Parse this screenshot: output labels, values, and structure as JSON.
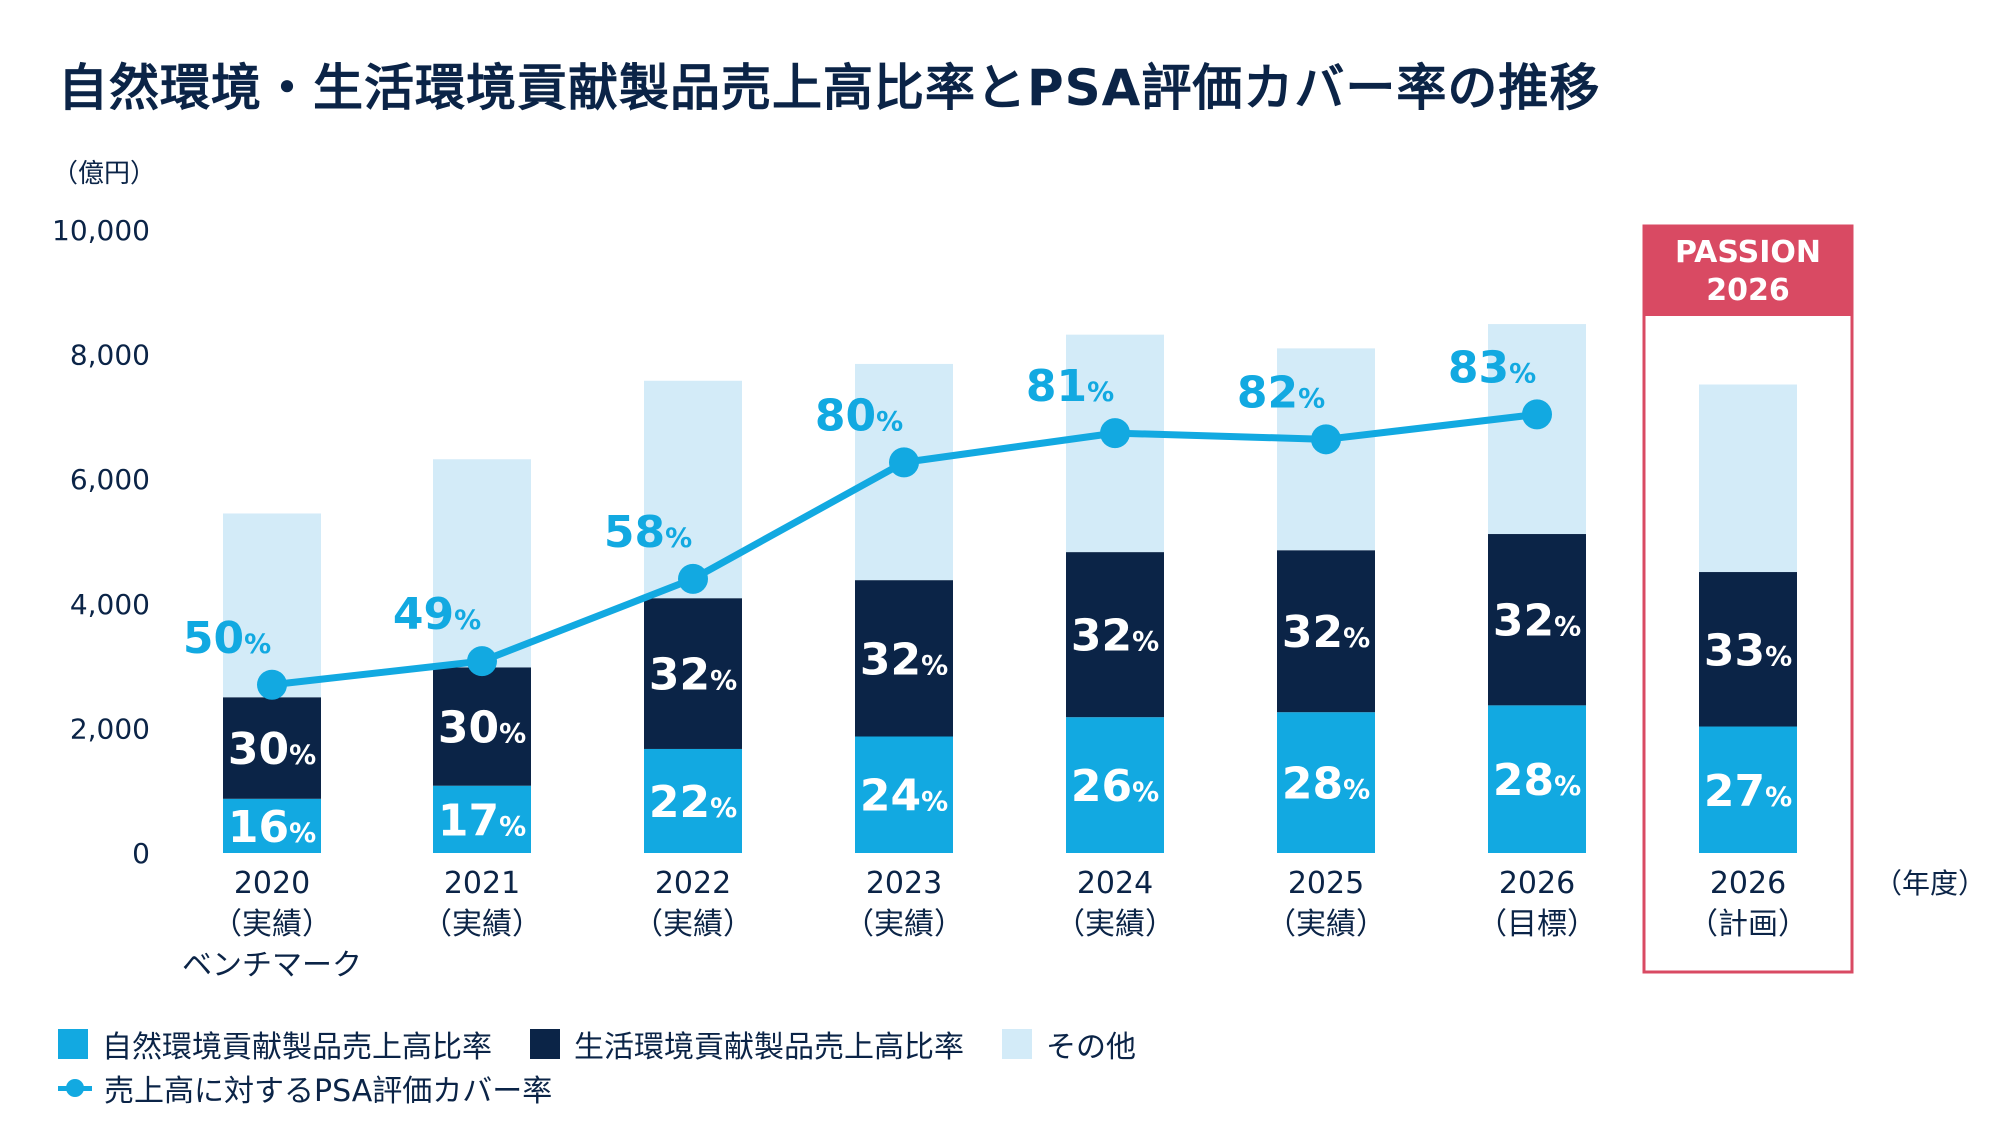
{
  "title": "自然環境・生活環境貢献製品売上高比率とPSA評価カバー率の推移",
  "colors": {
    "natural": "#12a9e1",
    "living": "#0b2447",
    "other": "#d3ebf8",
    "line": "#12a9e1",
    "passion": "#d94a63",
    "axis_text": "#0b2447"
  },
  "legend": {
    "natural": "自然環境貢献製品売上高比率",
    "living": "生活環境貢献製品売上高比率",
    "other": "その他",
    "line": "売上高に対するPSA評価カバー率"
  },
  "passion_label": [
    "PASSION",
    "2026"
  ],
  "chart_data": {
    "type": "bar",
    "stacked": true,
    "unit_label": "（億円）",
    "xlabel": "（年度）",
    "ylim": [
      0,
      10000
    ],
    "yticks": [
      "0",
      "2,000",
      "4,000",
      "6,000",
      "8,000",
      "10,000"
    ],
    "categories": [
      [
        "2020",
        "（実績）",
        "ベンチマーク"
      ],
      [
        "2021",
        "（実績）"
      ],
      [
        "2022",
        "（実績）"
      ],
      [
        "2023",
        "（実績）"
      ],
      [
        "2024",
        "（実績）"
      ],
      [
        "2025",
        "（実績）"
      ],
      [
        "2026",
        "（目標）"
      ],
      [
        "2026",
        "（計画）"
      ]
    ],
    "series": [
      {
        "name": "自然環境貢献製品売上高比率",
        "values": [
          870,
          1080,
          1670,
          1870,
          2180,
          2260,
          2370,
          2030
        ],
        "labels": [
          "16",
          "17",
          "22",
          "24",
          "26",
          "28",
          "28",
          "27"
        ]
      },
      {
        "name": "生活環境貢献製品売上高比率",
        "values": [
          1630,
          1900,
          2420,
          2510,
          2650,
          2600,
          2750,
          2480
        ],
        "labels": [
          "30",
          "30",
          "32",
          "32",
          "32",
          "32",
          "32",
          "33"
        ]
      },
      {
        "name": "その他",
        "values": [
          2950,
          3340,
          3490,
          3470,
          3490,
          3240,
          3370,
          3010
        ]
      }
    ],
    "line": {
      "name": "売上高に対するPSA評価カバー率",
      "values": [
        2700,
        3080,
        4400,
        6270,
        6740,
        6640,
        7040,
        null
      ],
      "labels": [
        "50",
        "49",
        "58",
        "80",
        "81",
        "82",
        "83",
        null
      ]
    },
    "pct_symbol": "%"
  }
}
